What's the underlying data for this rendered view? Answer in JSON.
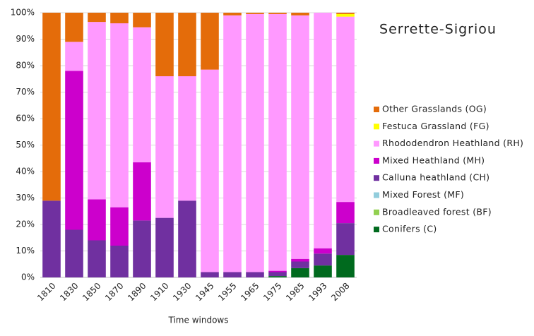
{
  "chart_data": {
    "type": "stacked_bar",
    "title": "Serrette-Sigriou",
    "xlabel": "Time windows",
    "categories": [
      "1810",
      "1830",
      "1850",
      "1870",
      "1890",
      "1910",
      "1930",
      "1945",
      "1955",
      "1965",
      "1975",
      "1985",
      "1993",
      "2008"
    ],
    "series": [
      {
        "name": "Conifers (C)",
        "color": "#006a1e",
        "values": [
          0,
          0,
          0,
          0,
          0,
          0,
          0,
          0,
          0,
          0,
          0.5,
          3.5,
          4.5,
          8.5
        ]
      },
      {
        "name": "Broadleaved forest (BF)",
        "color": "#92d050",
        "values": [
          0,
          0,
          0,
          0,
          0,
          0,
          0,
          0,
          0,
          0,
          0,
          0,
          0,
          0
        ]
      },
      {
        "name": "Mixed Forest (MF)",
        "color": "#92cddc",
        "values": [
          0,
          0,
          0,
          0,
          0,
          0,
          0,
          0,
          0,
          0,
          0,
          0,
          0,
          0
        ]
      },
      {
        "name": "Calluna heathland (CH)",
        "color": "#7030a0",
        "values": [
          29,
          18,
          14,
          12,
          21.5,
          22.5,
          29,
          2,
          2,
          2,
          1.5,
          2.5,
          4.5,
          12
        ]
      },
      {
        "name": "Mixed Heathland (MH)",
        "color": "#cc00cc",
        "values": [
          0,
          60,
          15.5,
          14.5,
          22,
          0,
          0,
          0,
          0,
          0,
          0.5,
          1,
          2,
          8
        ]
      },
      {
        "name": "Rhododendron Heathland (RH)",
        "color": "#ff99ff",
        "values": [
          0,
          11,
          67,
          69.5,
          51,
          53.5,
          47,
          76.5,
          97,
          97.5,
          97,
          92,
          89,
          70
        ]
      },
      {
        "name": "Festuca Grassland (FG)",
        "color": "#ffff00",
        "values": [
          0,
          0,
          0,
          0,
          0,
          0,
          0,
          0,
          0,
          0,
          0,
          0,
          0,
          1
        ]
      },
      {
        "name": "Other Grasslands (OG)",
        "color": "#e46c0a",
        "values": [
          71,
          11,
          3.5,
          4,
          5.5,
          24,
          24,
          21.5,
          1,
          0.5,
          0.5,
          1,
          0,
          0.5
        ]
      }
    ],
    "ylim": [
      0,
      100
    ],
    "yticks": [
      {
        "value": 0,
        "label": "0%"
      },
      {
        "value": 10,
        "label": "10%"
      },
      {
        "value": 20,
        "label": "20%"
      },
      {
        "value": 30,
        "label": "30%"
      },
      {
        "value": 40,
        "label": "40%"
      },
      {
        "value": 50,
        "label": "50%"
      },
      {
        "value": 60,
        "label": "60%"
      },
      {
        "value": 70,
        "label": "70%"
      },
      {
        "value": 80,
        "label": "80%"
      },
      {
        "value": 90,
        "label": "90%"
      },
      {
        "value": 100,
        "label": "100%"
      }
    ],
    "legend": "right"
  }
}
